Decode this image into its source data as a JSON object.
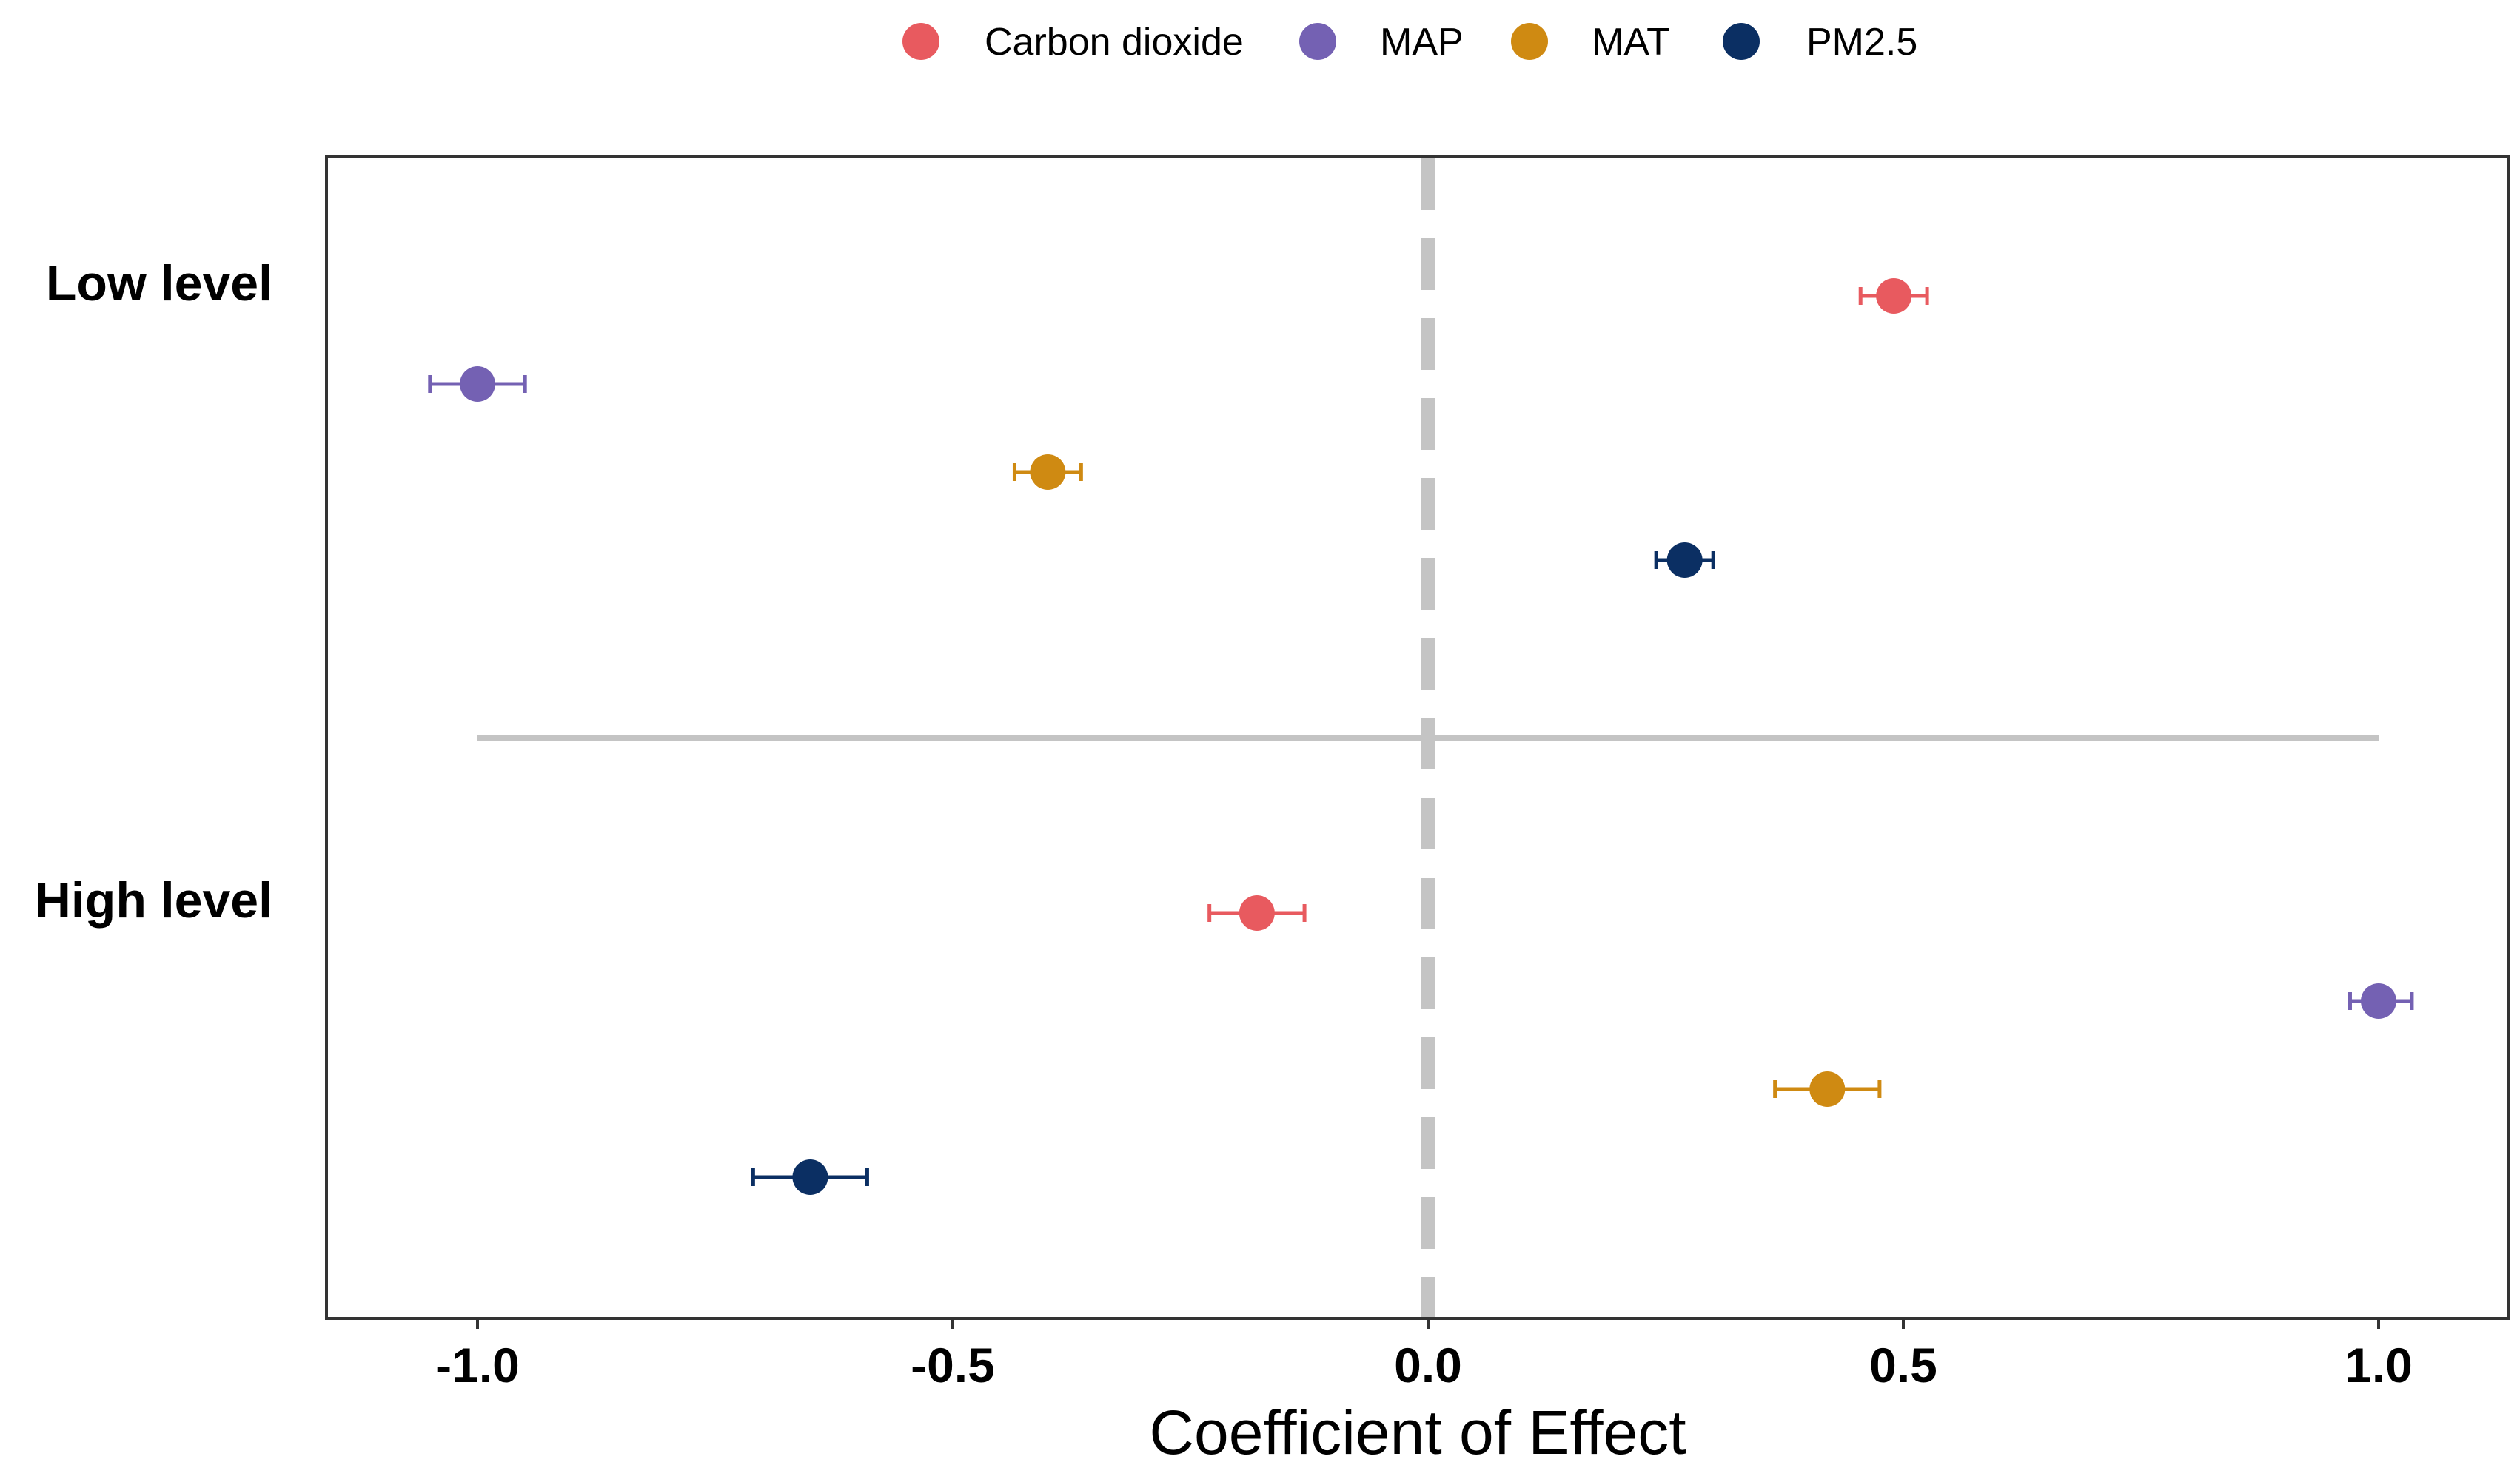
{
  "chart_data": {
    "type": "scatter",
    "subtype": "dot-whisker",
    "xlabel": "Coefficient of Effect",
    "xlim": [
      -1.15,
      1.15
    ],
    "xticks": [
      -1.0,
      -0.5,
      0.0,
      0.5,
      1.0
    ],
    "xtick_labels": [
      "-1.0",
      "-0.5",
      "0.0",
      "0.5",
      "1.0"
    ],
    "reference_line_x": 0.0,
    "separator_line_x_range": [
      -1.0,
      1.0
    ],
    "legend_position": "top-center",
    "groups": [
      "Low level",
      "High level"
    ],
    "series": [
      {
        "name": "Carbon dioxide",
        "color": "#e85a5f",
        "values": [
          {
            "group": "Low level",
            "estimate": 0.49,
            "lower": 0.455,
            "upper": 0.525
          },
          {
            "group": "High level",
            "estimate": -0.18,
            "lower": -0.23,
            "upper": -0.13
          }
        ]
      },
      {
        "name": "MAP",
        "color": "#7461b3",
        "values": [
          {
            "group": "Low level",
            "estimate": -1.0,
            "lower": -1.05,
            "upper": -0.95
          },
          {
            "group": "High level",
            "estimate": 1.0,
            "lower": 0.97,
            "upper": 1.035
          }
        ]
      },
      {
        "name": "MAT",
        "color": "#cf8a12",
        "values": [
          {
            "group": "Low level",
            "estimate": -0.4,
            "lower": -0.435,
            "upper": -0.365
          },
          {
            "group": "High level",
            "estimate": 0.42,
            "lower": 0.365,
            "upper": 0.475
          }
        ]
      },
      {
        "name": "PM2.5",
        "color": "#0b2f63",
        "values": [
          {
            "group": "Low level",
            "estimate": 0.27,
            "lower": 0.24,
            "upper": 0.3
          },
          {
            "group": "High level",
            "estimate": -0.65,
            "lower": -0.71,
            "upper": -0.59
          }
        ]
      }
    ]
  },
  "colors": {
    "reference_line": "#c4c4c4",
    "separator_line": "#c4c4c4",
    "frame": "#333333"
  }
}
